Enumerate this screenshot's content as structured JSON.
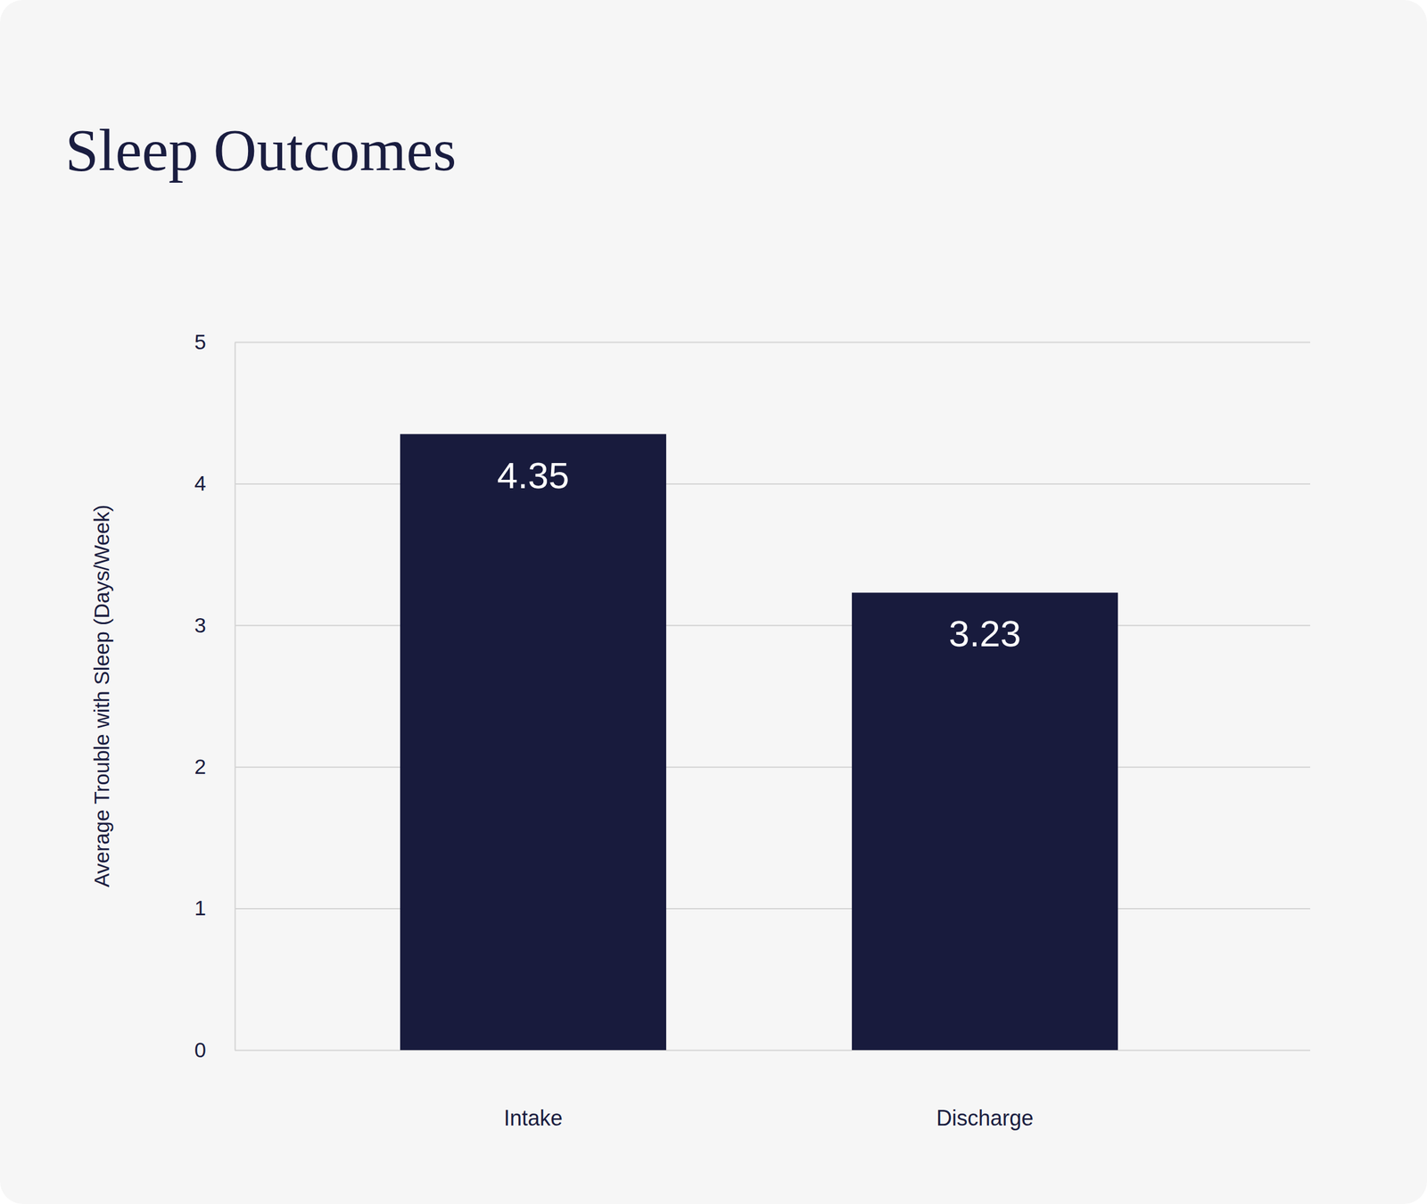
{
  "chart_data": {
    "type": "bar",
    "title": "Sleep Outcomes",
    "y_label": "Average Trouble with Sleep (Days/Week)",
    "categories": [
      "Intake",
      "Discharge"
    ],
    "values": [
      4.35,
      3.23
    ],
    "color": "#181b3d",
    "ylim": [
      0,
      5
    ],
    "yticks": [
      0,
      1,
      2,
      3,
      4,
      5
    ],
    "grid": true,
    "data_labels": true
  }
}
